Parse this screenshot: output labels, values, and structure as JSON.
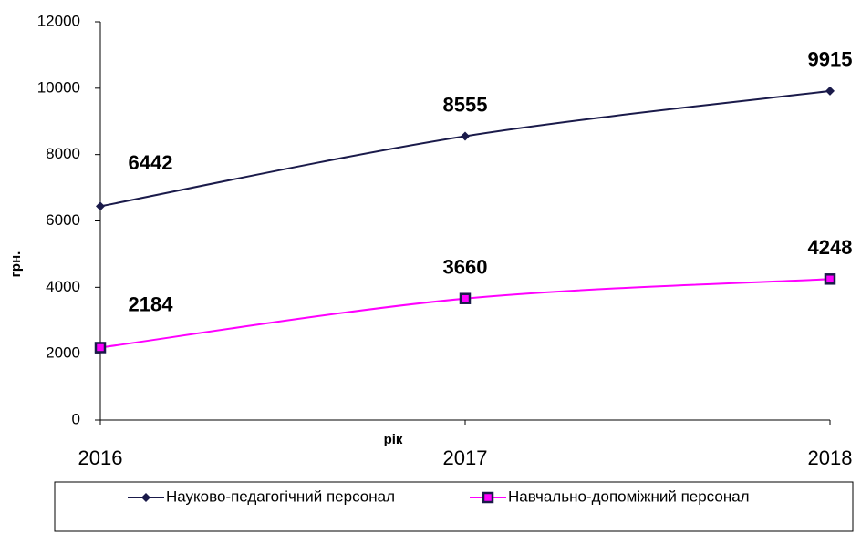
{
  "chart_data": {
    "type": "line",
    "categories": [
      "2016",
      "2017",
      "2018"
    ],
    "series": [
      {
        "name": "Науково-педагогічний персонал",
        "color": "#1a1a4a",
        "marker": "diamond",
        "values": [
          6442,
          8555,
          9915
        ]
      },
      {
        "name": "Навчально-допоміжний персонал",
        "color": "#ff00ff",
        "marker": "square",
        "values": [
          2184,
          3660,
          4248
        ]
      }
    ],
    "xlabel": "рік",
    "ylabel": "грн.",
    "ylim": [
      0,
      12000
    ],
    "yticks": [
      0,
      2000,
      4000,
      6000,
      8000,
      10000,
      12000
    ],
    "smooth": true,
    "grid": false,
    "legend": "bottom"
  }
}
